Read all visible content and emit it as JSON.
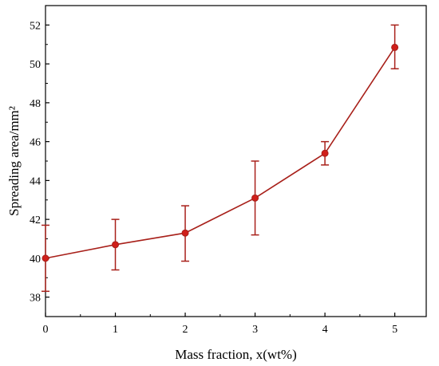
{
  "chart_data": {
    "type": "line",
    "xlabel": "Mass fraction, x(wt%)",
    "ylabel": "Spreading area/mm²",
    "xlim": [
      0,
      5.45
    ],
    "ylim": [
      37,
      53
    ],
    "xticks": [
      0,
      1,
      2,
      3,
      4,
      5
    ],
    "yticks": [
      38,
      40,
      42,
      44,
      46,
      48,
      50,
      52
    ],
    "grid": false,
    "series": [
      {
        "x": [
          0,
          1,
          2,
          3,
          4,
          5
        ],
        "y": [
          40.0,
          40.7,
          41.3,
          43.1,
          45.4,
          50.85
        ],
        "error_low": [
          38.3,
          39.4,
          39.85,
          41.2,
          44.8,
          49.75
        ],
        "error_high": [
          41.7,
          42.0,
          42.7,
          45.0,
          46.0,
          52.0
        ]
      }
    ],
    "colors": {
      "line": "#a8201a",
      "marker": "#d01f1a",
      "axis": "#000000"
    }
  }
}
